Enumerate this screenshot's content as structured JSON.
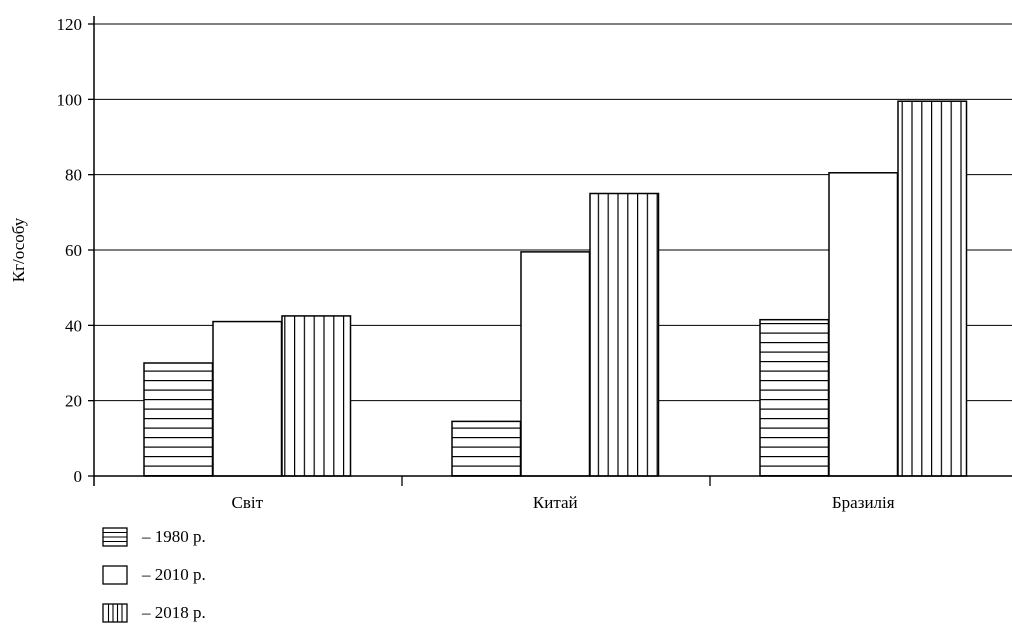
{
  "chart_data": {
    "type": "bar",
    "title": "",
    "xlabel": "",
    "ylabel": "Кг/особу",
    "categories": [
      "Світ",
      "Китай",
      "Бразилія"
    ],
    "series": [
      {
        "name": "– 1980 р.",
        "values": [
          30,
          14.5,
          41.5
        ],
        "pattern": "horizontal-lines"
      },
      {
        "name": "– 2010 р.",
        "values": [
          41,
          59.5,
          80.5
        ],
        "pattern": "none"
      },
      {
        "name": "– 2018 р.",
        "values": [
          42.5,
          75,
          99.5
        ],
        "pattern": "vertical-lines"
      }
    ],
    "ylim": [
      0,
      120
    ],
    "yticks": [
      "0",
      "20",
      "40",
      "60",
      "80",
      "100",
      "120"
    ],
    "grid": true,
    "legend_position": "bottom-left",
    "colors": {
      "bar_fill": "#ffffff",
      "bar_stroke": "#000000",
      "grid": "#000000"
    }
  }
}
